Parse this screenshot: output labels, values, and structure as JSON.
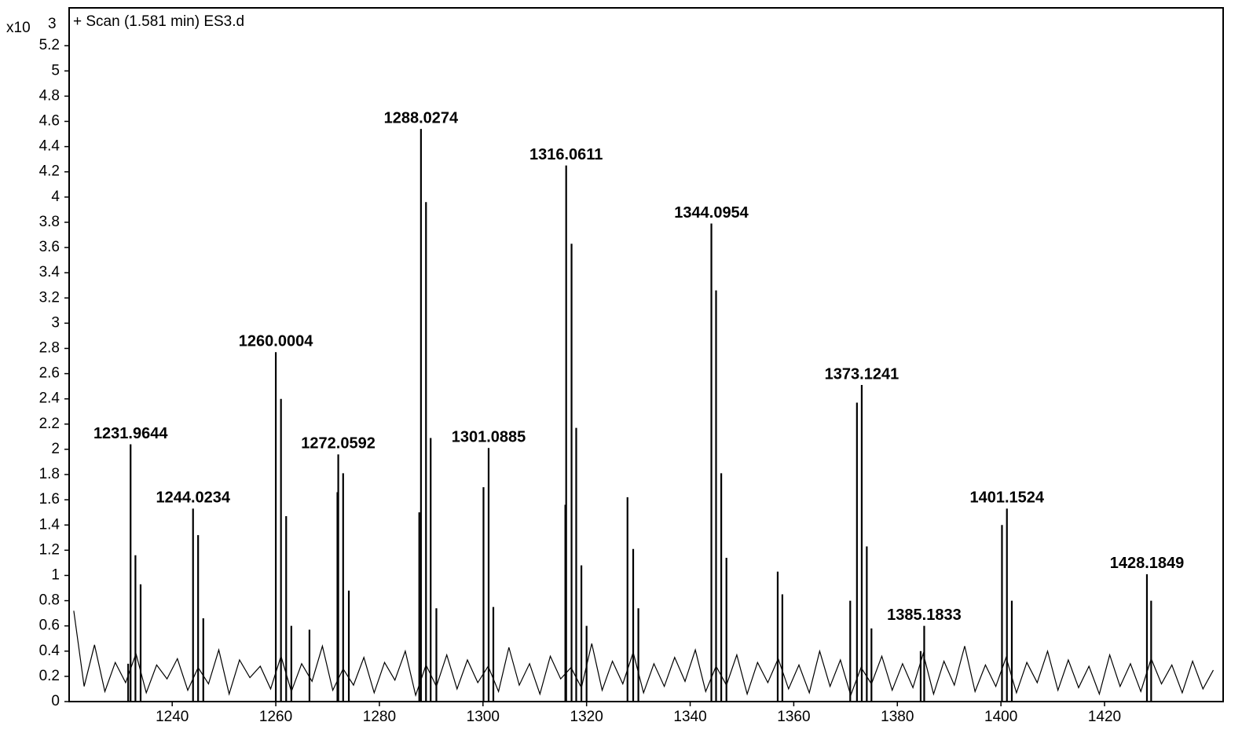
{
  "chart_data": {
    "type": "stick",
    "annotation": "+ Scan (1.581 min) ES3.d",
    "y_multiplier": "x10",
    "y_exponent": "3",
    "color": "#000000",
    "xlim": [
      1220.1,
      1442.9
    ],
    "ylim": [
      0,
      5.5
    ],
    "xticks": [
      1240,
      1260,
      1280,
      1300,
      1320,
      1340,
      1360,
      1380,
      1400,
      1420
    ],
    "yticks": [
      0,
      0.2,
      0.4,
      0.6,
      0.8,
      1,
      1.2,
      1.4,
      1.6,
      1.8,
      2,
      2.2,
      2.4,
      2.6,
      2.8,
      3,
      3.2,
      3.4,
      3.6,
      3.8,
      4,
      4.2,
      4.4,
      4.6,
      4.8,
      5,
      5.2
    ],
    "peaks": {
      "x": [
        1231.5,
        1231.9644,
        1232.9,
        1233.9,
        1244.0234,
        1245.0,
        1246.0,
        1260.0004,
        1261.0,
        1262.0,
        1263.0,
        1266.5,
        1271.9,
        1272.0592,
        1273.0,
        1274.1,
        1287.7,
        1288.0274,
        1289.0,
        1289.9,
        1291.0,
        1300.1,
        1301.0885,
        1302.0,
        1315.9,
        1316.0611,
        1317.1,
        1318.0,
        1319.0,
        1320.0,
        1327.9,
        1329.0,
        1330.0,
        1344.0954,
        1345.0,
        1346.0,
        1347.0,
        1356.9,
        1357.8,
        1370.9,
        1372.2,
        1373.1241,
        1374.1,
        1375.0,
        1384.5,
        1385.1833,
        1400.2,
        1401.1524,
        1402.1,
        1428.1849,
        1429.0
      ],
      "values": [
        0.3,
        2.04,
        1.16,
        0.93,
        1.53,
        1.32,
        0.66,
        2.77,
        2.4,
        1.47,
        0.6,
        0.57,
        1.66,
        1.96,
        1.81,
        0.88,
        1.5,
        4.54,
        3.96,
        2.09,
        0.74,
        1.7,
        2.01,
        0.75,
        1.56,
        4.25,
        3.63,
        2.17,
        1.08,
        0.6,
        1.62,
        1.21,
        0.74,
        3.79,
        3.26,
        1.81,
        1.14,
        1.03,
        0.85,
        0.8,
        2.37,
        2.51,
        1.23,
        0.58,
        0.4,
        0.6,
        1.4,
        1.53,
        0.8,
        1.01,
        0.8
      ],
      "labels": [
        null,
        "1231.9644",
        null,
        null,
        "1244.0234",
        null,
        null,
        "1260.0004",
        null,
        null,
        null,
        null,
        null,
        "1272.0592",
        null,
        null,
        null,
        "1288.0274",
        null,
        null,
        null,
        null,
        "1301.0885",
        null,
        null,
        "1316.0611",
        null,
        null,
        null,
        null,
        null,
        null,
        null,
        "1344.0954",
        null,
        null,
        null,
        null,
        null,
        null,
        null,
        "1373.1241",
        null,
        null,
        null,
        "1385.1833",
        null,
        "1401.1524",
        null,
        "1428.1849",
        null
      ]
    },
    "noise": {
      "x": [
        1221,
        1223,
        1225,
        1227,
        1229,
        1231,
        1233,
        1235,
        1237,
        1239,
        1241,
        1243,
        1245,
        1247,
        1249,
        1251,
        1253,
        1255,
        1257,
        1259,
        1261,
        1263,
        1265,
        1267,
        1269,
        1271,
        1273,
        1275,
        1277,
        1279,
        1281,
        1283,
        1285,
        1287,
        1289,
        1291,
        1293,
        1295,
        1297,
        1299,
        1301,
        1303,
        1305,
        1307,
        1309,
        1311,
        1313,
        1315,
        1317,
        1319,
        1321,
        1323,
        1325,
        1327,
        1329,
        1331,
        1333,
        1335,
        1337,
        1339,
        1341,
        1343,
        1345,
        1347,
        1349,
        1351,
        1353,
        1355,
        1357,
        1359,
        1361,
        1363,
        1365,
        1367,
        1369,
        1371,
        1373,
        1375,
        1377,
        1379,
        1381,
        1383,
        1385,
        1387,
        1389,
        1391,
        1393,
        1395,
        1397,
        1399,
        1401,
        1403,
        1405,
        1407,
        1409,
        1411,
        1413,
        1415,
        1417,
        1419,
        1421,
        1423,
        1425,
        1427,
        1429,
        1431,
        1433,
        1435,
        1437,
        1439,
        1441
      ],
      "values": [
        0.72,
        0.12,
        0.45,
        0.08,
        0.31,
        0.15,
        0.38,
        0.07,
        0.29,
        0.18,
        0.34,
        0.09,
        0.27,
        0.14,
        0.41,
        0.06,
        0.33,
        0.19,
        0.28,
        0.1,
        0.36,
        0.08,
        0.3,
        0.16,
        0.44,
        0.09,
        0.26,
        0.13,
        0.35,
        0.07,
        0.31,
        0.17,
        0.4,
        0.05,
        0.29,
        0.12,
        0.37,
        0.1,
        0.33,
        0.15,
        0.28,
        0.08,
        0.43,
        0.13,
        0.3,
        0.06,
        0.36,
        0.18,
        0.27,
        0.11,
        0.46,
        0.09,
        0.32,
        0.14,
        0.39,
        0.07,
        0.3,
        0.12,
        0.35,
        0.16,
        0.41,
        0.08,
        0.28,
        0.13,
        0.37,
        0.06,
        0.31,
        0.15,
        0.34,
        0.1,
        0.29,
        0.07,
        0.4,
        0.12,
        0.33,
        0.05,
        0.27,
        0.14,
        0.36,
        0.09,
        0.3,
        0.11,
        0.38,
        0.06,
        0.32,
        0.13,
        0.44,
        0.08,
        0.29,
        0.12,
        0.35,
        0.07,
        0.31,
        0.15,
        0.4,
        0.09,
        0.33,
        0.11,
        0.28,
        0.06,
        0.37,
        0.12,
        0.3,
        0.08,
        0.34,
        0.14,
        0.29,
        0.07,
        0.32,
        0.1,
        0.25
      ]
    }
  }
}
